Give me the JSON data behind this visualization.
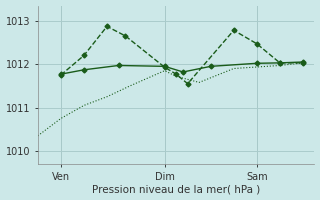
{
  "background_color": "#cce8e8",
  "grid_color": "#aacccc",
  "line_color": "#1a5c1a",
  "xlabel": "Pression niveau de la mer( hPa )",
  "ylim": [
    1009.7,
    1013.35
  ],
  "xlim": [
    0,
    12
  ],
  "yticks": [
    1010,
    1011,
    1012,
    1013
  ],
  "xtick_positions": [
    1.0,
    5.5,
    9.5
  ],
  "xtick_labels": [
    "Ven",
    "Dim",
    "Sam"
  ],
  "vlines": [
    1.0,
    5.5,
    9.5
  ],
  "series1_x": [
    1.0,
    2.0,
    3.0,
    3.8,
    5.5,
    6.0,
    6.5,
    8.5,
    9.5,
    10.5,
    11.5
  ],
  "series1_y": [
    1011.75,
    1012.2,
    1012.87,
    1012.65,
    1011.93,
    1011.77,
    1011.55,
    1012.78,
    1012.47,
    1012.03,
    1012.03
  ],
  "series2_x": [
    1.0,
    2.0,
    3.5,
    5.5,
    6.3,
    7.5,
    9.5,
    10.5,
    11.5
  ],
  "series2_y": [
    1011.77,
    1011.87,
    1011.97,
    1011.95,
    1011.82,
    1011.95,
    1012.02,
    1012.03,
    1012.05
  ],
  "series3_x": [
    0.0,
    1.0,
    2.0,
    3.0,
    4.0,
    5.5,
    6.0,
    7.0,
    8.5,
    10.5,
    11.5
  ],
  "series3_y": [
    1010.35,
    1010.75,
    1011.05,
    1011.25,
    1011.5,
    1011.85,
    1011.72,
    1011.58,
    1011.9,
    1011.97,
    1012.03
  ]
}
